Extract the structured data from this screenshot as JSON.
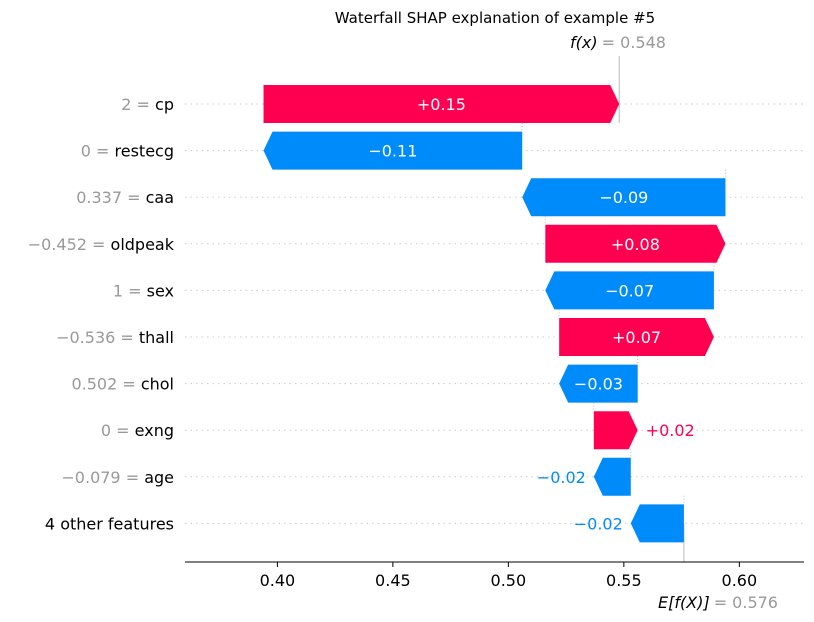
{
  "title": "Waterfall SHAP explanation of example #5",
  "fx": {
    "label": "f(x)",
    "value": 0.548,
    "value_text": "= 0.548"
  },
  "efx": {
    "label": "E[f(X)]",
    "value": 0.576,
    "value_text": "= 0.576"
  },
  "colors": {
    "positive": "#ff0051",
    "negative": "#008bfb",
    "value_text": "#999999",
    "axis": "#000000"
  },
  "chart_data": {
    "type": "bar",
    "orientation": "horizontal-waterfall",
    "xlim": [
      0.36,
      0.628
    ],
    "xticks": [
      0.4,
      0.45,
      0.5,
      0.55,
      0.6
    ],
    "xtick_labels": [
      "0.40",
      "0.45",
      "0.50",
      "0.55",
      "0.60"
    ],
    "base_value": 0.576,
    "output_value": 0.548,
    "features": [
      {
        "value": "2 =",
        "name": "cp",
        "shap": 0.154,
        "label": "+0.15",
        "start": 0.394,
        "end": 0.548
      },
      {
        "value": "0 =",
        "name": "restecg",
        "shap": -0.112,
        "label": "−0.11",
        "start": 0.506,
        "end": 0.394
      },
      {
        "value": "0.337 =",
        "name": "caa",
        "shap": -0.088,
        "label": "−0.09",
        "start": 0.594,
        "end": 0.506
      },
      {
        "value": "−0.452 =",
        "name": "oldpeak",
        "shap": 0.078,
        "label": "+0.08",
        "start": 0.516,
        "end": 0.594
      },
      {
        "value": "1 =",
        "name": "sex",
        "shap": -0.073,
        "label": "−0.07",
        "start": 0.589,
        "end": 0.516
      },
      {
        "value": "−0.536 =",
        "name": "thall",
        "shap": 0.067,
        "label": "+0.07",
        "start": 0.522,
        "end": 0.589
      },
      {
        "value": "0.502 =",
        "name": "chol",
        "shap": -0.034,
        "label": "−0.03",
        "start": 0.556,
        "end": 0.522
      },
      {
        "value": "0 =",
        "name": "exng",
        "shap": 0.019,
        "label": "+0.02",
        "start": 0.537,
        "end": 0.556
      },
      {
        "value": "−0.079 =",
        "name": "age",
        "shap": -0.016,
        "label": "−0.02",
        "start": 0.553,
        "end": 0.537
      },
      {
        "value": "",
        "name": "4 other features",
        "shap": -0.023,
        "label": "−0.02",
        "start": 0.576,
        "end": 0.553
      }
    ]
  }
}
